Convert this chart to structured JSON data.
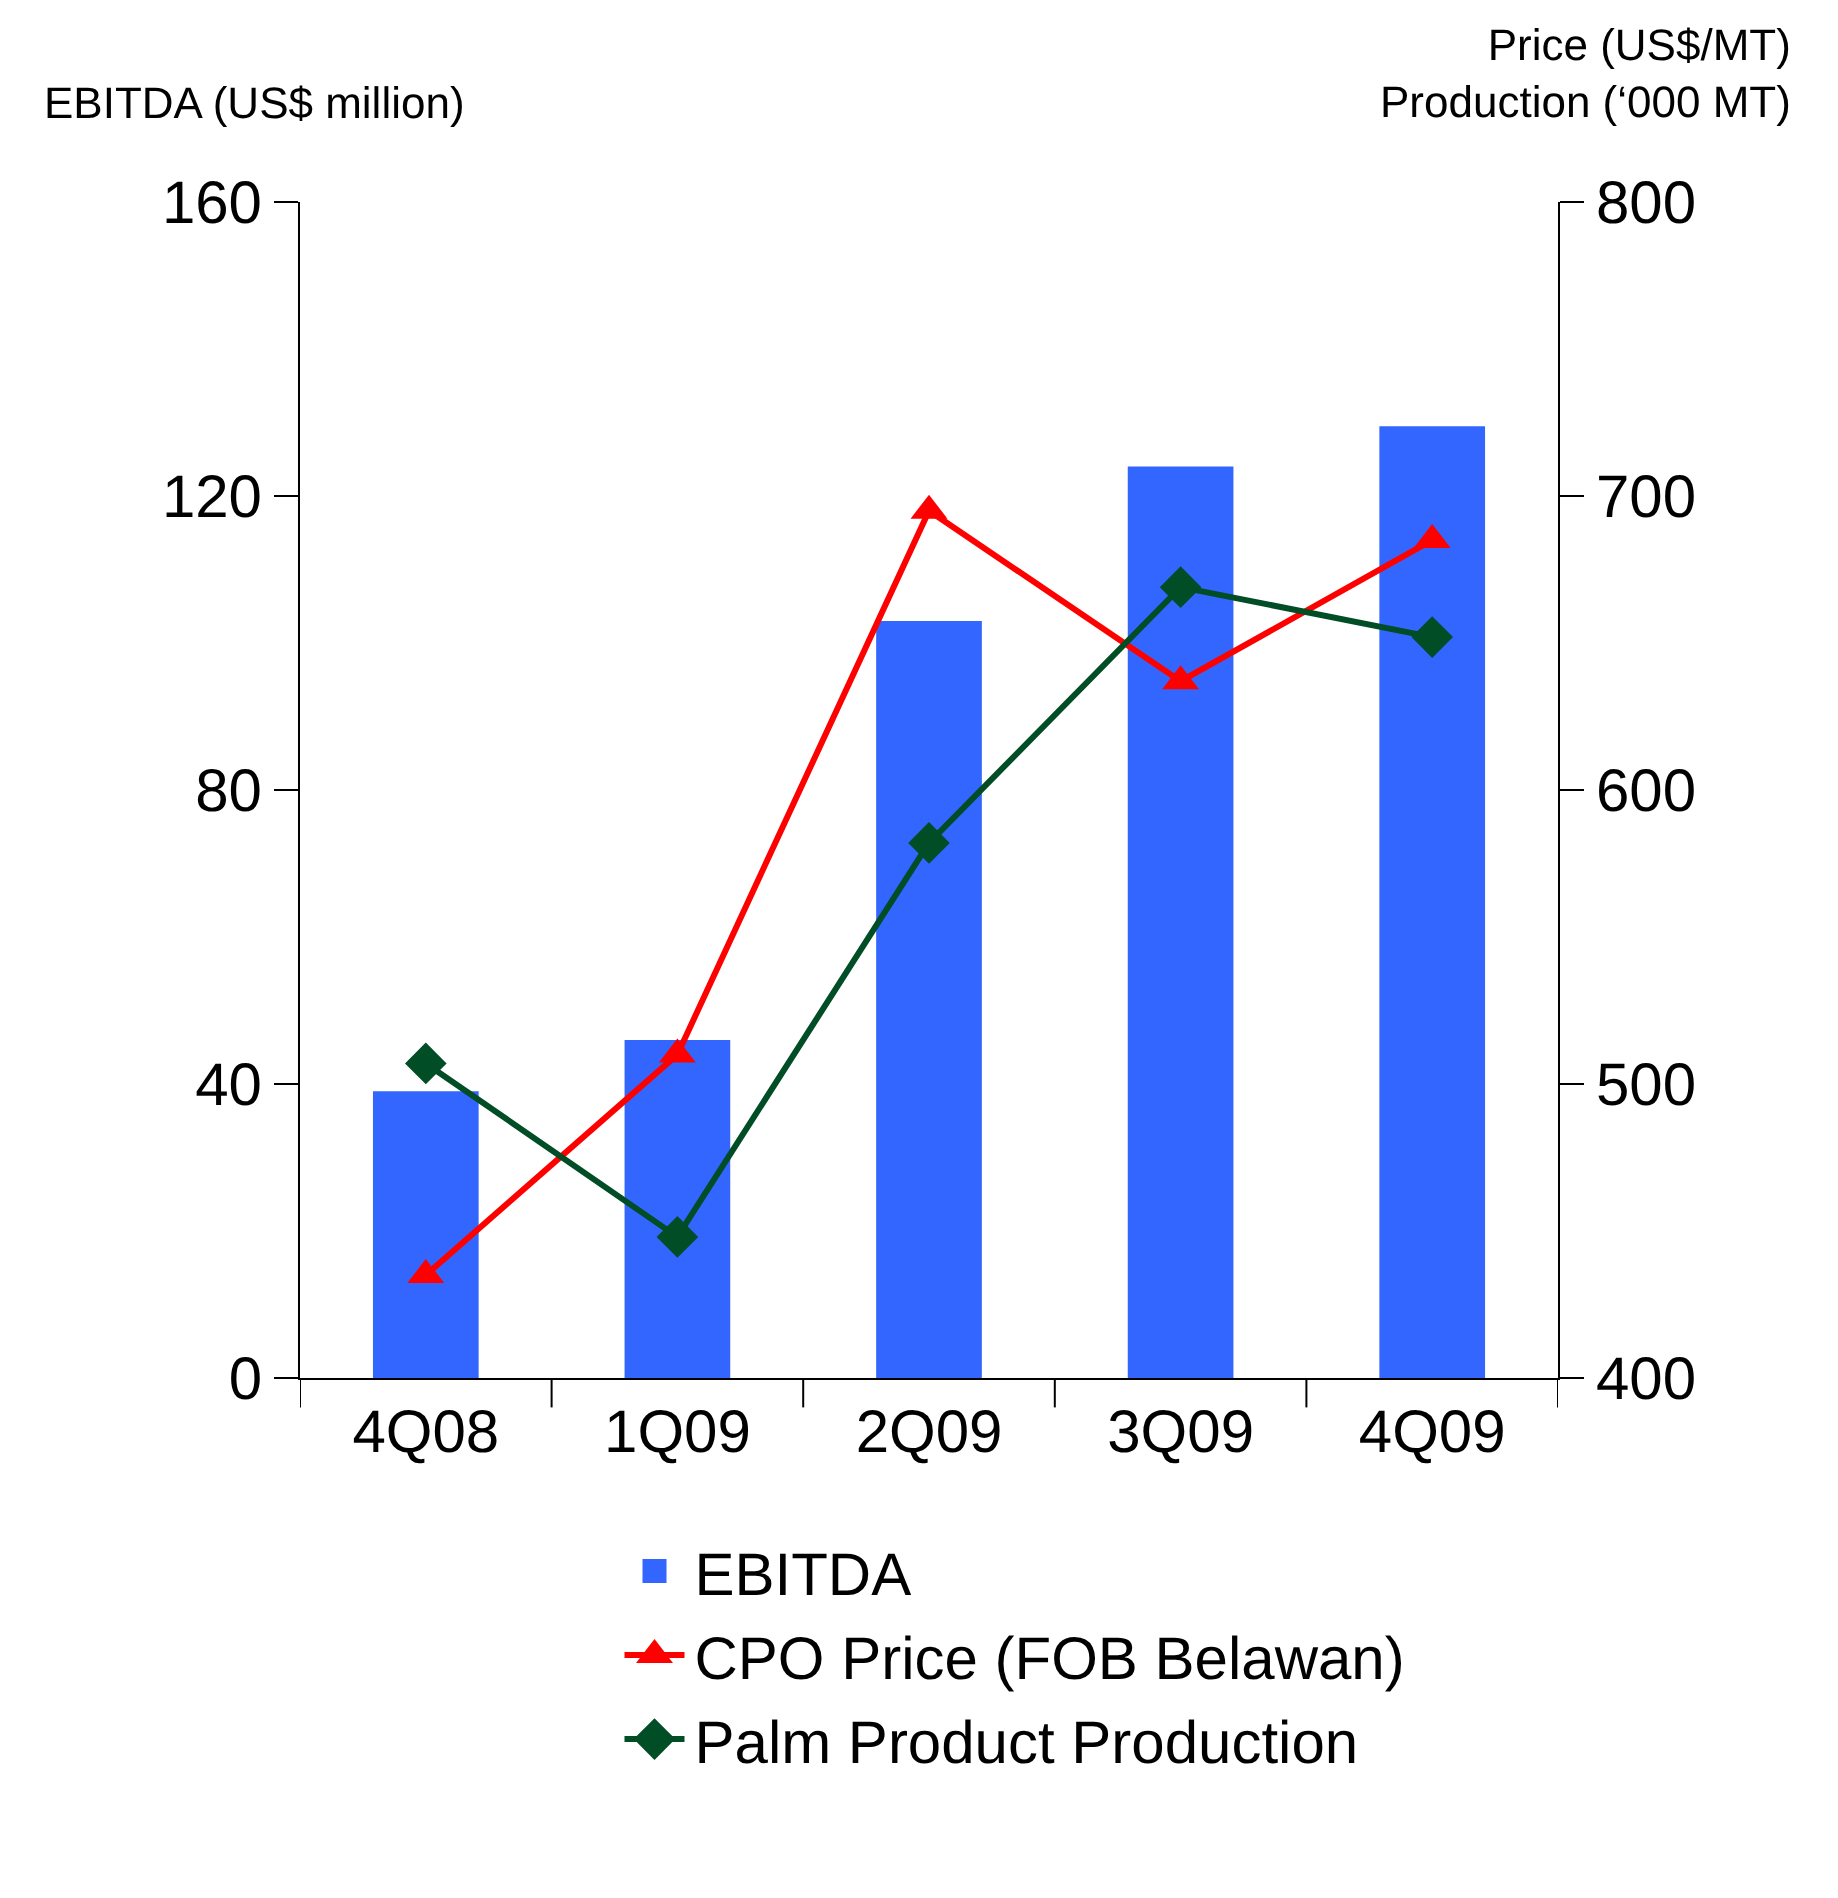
{
  "chart_data": {
    "type": "bar",
    "ylabel": "EBITDA (US$ million)",
    "y2label": "Price (US$/MT)\nProduction (‘000 MT)",
    "categories": [
      "4Q08",
      "1Q09",
      "2Q09",
      "3Q09",
      "4Q09"
    ],
    "series": [
      {
        "name": "EBITDA",
        "color": "#3366ff",
        "values": [
          39,
          46,
          103,
          124,
          129.5
        ]
      },
      {
        "name": "CPO Price (FOB Belawan)",
        "type": "line",
        "axis": "y2",
        "marker": "triangle",
        "color": "#ff0000",
        "values": [
          435,
          510,
          695,
          637,
          685
        ]
      },
      {
        "name": "Palm Product Production",
        "type": "line",
        "axis": "y2",
        "marker": "diamond",
        "color": "#004d26",
        "values": [
          507,
          448,
          582,
          669,
          652
        ]
      }
    ],
    "ylim": [
      0,
      160
    ],
    "yticks": [
      0,
      40,
      80,
      120,
      160
    ],
    "y2lim": [
      400,
      800
    ],
    "y2ticks": [
      400,
      500,
      600,
      700,
      800
    ],
    "grid": false,
    "legend": "bottom"
  }
}
